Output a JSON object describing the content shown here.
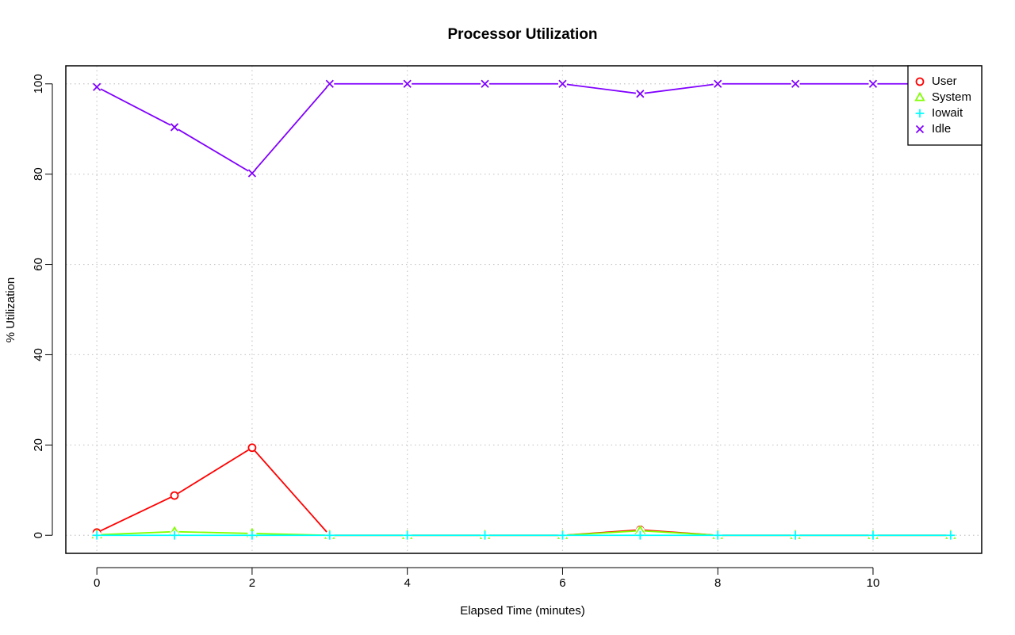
{
  "chart_data": {
    "type": "line",
    "title": "Processor Utilization",
    "xlabel": "Elapsed Time (minutes)",
    "ylabel": "% Utilization",
    "x": [
      0,
      1,
      2,
      3,
      4,
      5,
      6,
      7,
      8,
      9,
      10,
      11
    ],
    "xlim": [
      -0.4,
      11.4
    ],
    "ylim": [
      -4,
      104
    ],
    "xticks": [
      0,
      2,
      4,
      6,
      8,
      10
    ],
    "yticks": [
      0,
      20,
      40,
      60,
      80,
      100
    ],
    "grid": true,
    "legend_position": "top-right",
    "series": [
      {
        "name": "User",
        "color": "#ff0000",
        "marker": "circle",
        "values": [
          0.6,
          8.8,
          19.4,
          0.0,
          0.0,
          0.0,
          0.0,
          1.2,
          0.0,
          0.0,
          0.0,
          0.0
        ]
      },
      {
        "name": "System",
        "color": "#80ff00",
        "marker": "triangle",
        "values": [
          0.1,
          0.8,
          0.4,
          0.0,
          0.0,
          0.0,
          0.0,
          1.0,
          0.0,
          0.0,
          0.0,
          0.0
        ]
      },
      {
        "name": "Iowait",
        "color": "#00ffff",
        "marker": "plus",
        "values": [
          0.0,
          0.0,
          0.0,
          0.0,
          0.0,
          0.0,
          0.0,
          0.0,
          0.0,
          0.0,
          0.0,
          0.0
        ]
      },
      {
        "name": "Idle",
        "color": "#8000ff",
        "marker": "cross",
        "values": [
          99.3,
          90.4,
          80.2,
          100,
          100,
          100,
          100,
          97.8,
          100,
          100,
          100,
          100
        ]
      }
    ]
  }
}
